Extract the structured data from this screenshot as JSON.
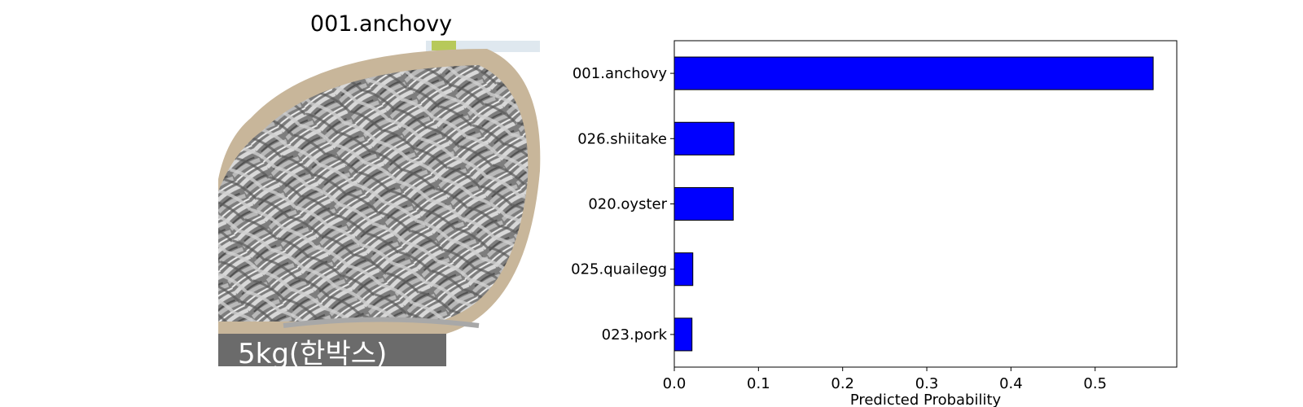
{
  "image_panel": {
    "title": "001.anchovy",
    "photo_caption": "5kg(한박스)"
  },
  "chart_data": {
    "type": "bar",
    "orientation": "horizontal",
    "categories": [
      "001.anchovy",
      "026.shiitake",
      "020.oyster",
      "025.quailegg",
      "023.pork"
    ],
    "values": [
      0.569,
      0.071,
      0.07,
      0.022,
      0.021
    ],
    "xlabel": "Predicted Probability",
    "ylabel": "",
    "title": "",
    "xlim": [
      0,
      0.597
    ],
    "xticks": [
      0.0,
      0.1,
      0.2,
      0.3,
      0.4,
      0.5
    ],
    "grid": false,
    "bar_color": "#0000ff",
    "bar_edge_color": "#000000"
  }
}
